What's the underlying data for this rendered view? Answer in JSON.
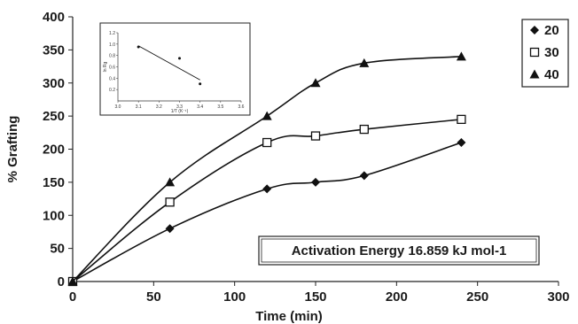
{
  "chart_data": [
    {
      "type": "line",
      "title": "",
      "xlabel": "Time (min)",
      "ylabel": "% Grafting",
      "xlim": [
        0,
        300
      ],
      "ylim": [
        0,
        400
      ],
      "xticks": [
        "0",
        "50",
        "100",
        "150",
        "200",
        "250",
        "300"
      ],
      "yticks": [
        "0",
        "50",
        "100",
        "150",
        "200",
        "250",
        "300",
        "350",
        "400"
      ],
      "grid": false,
      "legend_position": "top-right",
      "series": [
        {
          "name": "20",
          "marker": "diamond",
          "x": [
            0,
            60,
            120,
            150,
            180,
            240
          ],
          "y": [
            0,
            80,
            140,
            150,
            160,
            210
          ]
        },
        {
          "name": "30",
          "marker": "square-open",
          "x": [
            0,
            60,
            120,
            150,
            180,
            240
          ],
          "y": [
            0,
            120,
            210,
            220,
            230,
            245
          ]
        },
        {
          "name": "40",
          "marker": "triangle",
          "x": [
            0,
            60,
            120,
            150,
            180,
            240
          ],
          "y": [
            0,
            150,
            250,
            300,
            330,
            340
          ]
        }
      ],
      "annotation": "Activation Energy 16.859 kJ mol-1"
    },
    {
      "type": "scatter",
      "title": "",
      "xlabel": "1/T (K⁻¹)",
      "ylabel": "ln Rg",
      "xlim": [
        3.0,
        3.6
      ],
      "ylim": [
        0.0,
        1.2
      ],
      "xticks": [
        "3.0",
        "3.1",
        "3.2",
        "3.3",
        "3.4",
        "3.5",
        "3.6"
      ],
      "yticks": [
        "0.2",
        "0.4",
        "0.6",
        "0.8",
        "1.0",
        "1.2"
      ],
      "grid": false,
      "points": {
        "x": [
          3.1,
          3.3,
          3.4
        ],
        "y": [
          0.95,
          0.75,
          0.3
        ]
      },
      "fit_line": {
        "x": [
          3.1,
          3.4
        ],
        "y": [
          0.97,
          0.37
        ]
      }
    }
  ]
}
